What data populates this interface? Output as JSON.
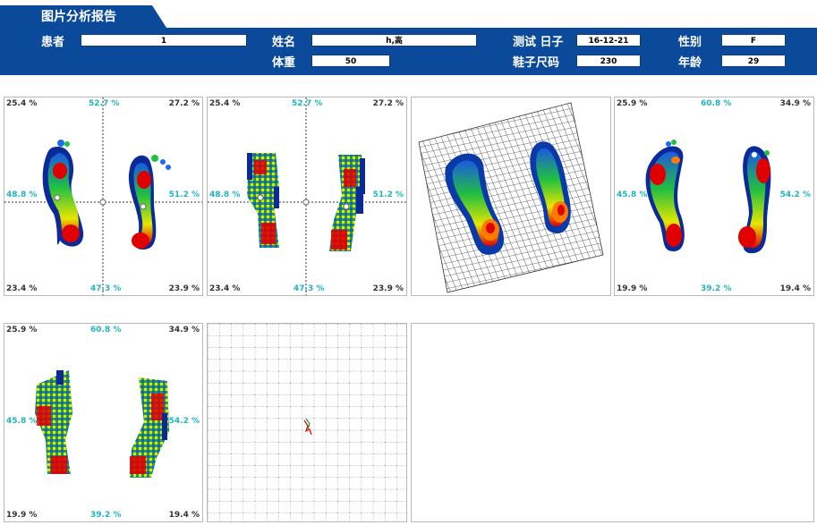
{
  "report": {
    "title": "图片分析报告"
  },
  "fields": {
    "patient_label": "患者",
    "patient_value": "1",
    "name_label": "姓名",
    "name_value": "h,高",
    "weight_label": "体重",
    "weight_value": "50",
    "test_date_label": "测试 日子",
    "test_date_value": "16-12-21",
    "shoe_size_label": "鞋子尺码",
    "shoe_size_value": "230",
    "gender_label": "性别",
    "gender_value": "F",
    "age_label": "年龄",
    "age_value": "29"
  },
  "panels": [
    {
      "tl": "25.4 %",
      "tc": "52.7 %",
      "tr": "27.2 %",
      "ml": "48.8 %",
      "mr": "51.2 %",
      "bl": "23.4 %",
      "bc": "47.3 %",
      "br": "23.9 %"
    },
    {
      "tl": "25.4 %",
      "tc": "52.7 %",
      "tr": "27.2 %",
      "ml": "48.8 %",
      "mr": "51.2 %",
      "bl": "23.4 %",
      "bc": "47.3 %",
      "br": "23.9 %"
    },
    {},
    {
      "tl": "25.9 %",
      "tc": "60.8 %",
      "tr": "34.9 %",
      "ml": "45.8 %",
      "mr": "54.2 %",
      "bl": "19.9 %",
      "bc": "39.2 %",
      "br": "19.4 %"
    },
    {
      "tl": "25.9 %",
      "tc": "60.8 %",
      "tr": "34.9 %",
      "ml": "45.8 %",
      "mr": "54.2 %",
      "bl": "19.9 %",
      "bc": "39.2 %",
      "br": "19.4 %"
    }
  ],
  "colors": {
    "header_blue": "#0b4a9a",
    "tab_blue": "#0b4a9a",
    "cyan": "#1fb5c0"
  }
}
